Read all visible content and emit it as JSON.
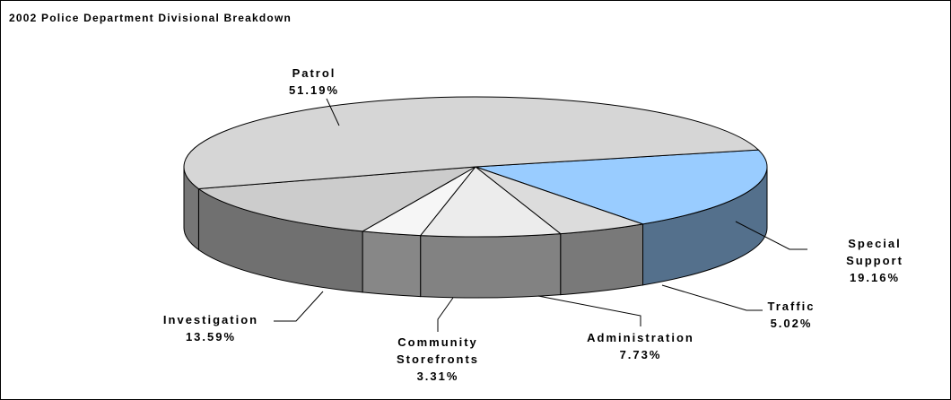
{
  "chart_data": {
    "type": "pie3d",
    "title": "2002 Police Department Divisional Breakdown",
    "categories": [
      "Special Support",
      "Traffic",
      "Administration",
      "Community Storefronts",
      "Investigation",
      "Patrol"
    ],
    "values": [
      19.16,
      5.02,
      7.73,
      3.31,
      13.59,
      51.19
    ],
    "value_labels": [
      "19.16%",
      "5.02%",
      "7.73%",
      "3.31%",
      "13.59%",
      "51.19%"
    ],
    "colors": [
      "#99ccff",
      "#dcdcdc",
      "#ececec",
      "#f6f6f6",
      "#cccccc",
      "#d6d6d6"
    ]
  }
}
